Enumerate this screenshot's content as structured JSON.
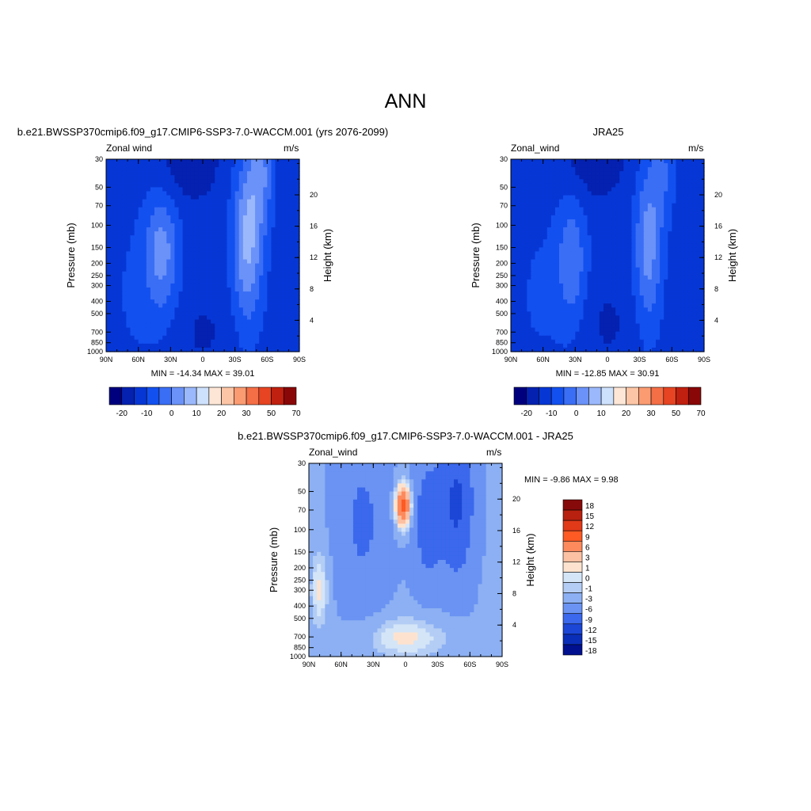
{
  "main_title": "ANN",
  "colorbar_ticks_top": [
    "-20",
    "-10",
    "0",
    "10",
    "20",
    "30",
    "50",
    "70"
  ],
  "colorbar_ticks_diff": [
    "18",
    "15",
    "12",
    "9",
    "6",
    "3",
    "1",
    "0",
    "-1",
    "-3",
    "-6",
    "-9",
    "-12",
    "-15",
    "-18"
  ],
  "colors_top": [
    "#00007f",
    "#0421b0",
    "#0637d5",
    "#1350f0",
    "#3a6ef5",
    "#6a92f8",
    "#9ab8fb",
    "#cde0fc",
    "#fde6d6",
    "#fcc5a6",
    "#fa9b72",
    "#f46e46",
    "#e64422",
    "#c0200f",
    "#8a0707"
  ],
  "colors_diff": [
    "#870a0a",
    "#b8210f",
    "#e13a19",
    "#fd5a24",
    "#fd8a5d",
    "#fcc0a2",
    "#fde3cf",
    "#d4e5f8",
    "#b4cdf5",
    "#8cb0f3",
    "#6a93f3",
    "#3b68ec",
    "#1b46d6",
    "#0b2eb8",
    "#00108e"
  ],
  "chart_data": [
    {
      "type": "heatmap",
      "title": "b.e21.BWSSP370cmip6.f09_g17.CMIP6-SSP3-7.0-WACCM.001 (yrs 2076-2099)",
      "field": "Zonal wind",
      "units": "m/s",
      "xlabel": "",
      "ylabel": "Pressure (mb)",
      "ylabel_right": "Height (km)",
      "x_ticks": [
        "90N",
        "60N",
        "30N",
        "0",
        "30S",
        "60S",
        "90S"
      ],
      "y_ticks": [
        "30",
        "50",
        "70",
        "100",
        "150",
        "200",
        "250",
        "300",
        "400",
        "500",
        "700",
        "850",
        "1000"
      ],
      "y_ticks_right": [
        "20",
        "16",
        "12",
        "8",
        "4"
      ],
      "ylim": [
        1000,
        30
      ],
      "min_max_text": "MIN = -14.34  MAX =  39.01",
      "min": -14.34,
      "max": 39.01,
      "levels": [
        -20,
        -10,
        0,
        10,
        20,
        30,
        50,
        70
      ]
    },
    {
      "type": "heatmap",
      "title": "JRA25",
      "field": "Zonal_wind",
      "units": "m/s",
      "xlabel": "",
      "ylabel": "Pressure (mb)",
      "ylabel_right": "Height (km)",
      "x_ticks": [
        "90N",
        "60N",
        "30N",
        "0",
        "30S",
        "60S",
        "90S"
      ],
      "y_ticks": [
        "30",
        "50",
        "70",
        "100",
        "150",
        "200",
        "250",
        "300",
        "400",
        "500",
        "700",
        "850",
        "1000"
      ],
      "y_ticks_right": [
        "20",
        "16",
        "12",
        "8",
        "4"
      ],
      "ylim": [
        1000,
        30
      ],
      "min_max_text": "MIN = -12.85  MAX =  30.91",
      "min": -12.85,
      "max": 30.91,
      "levels": [
        -20,
        -10,
        0,
        10,
        20,
        30,
        50,
        70
      ]
    },
    {
      "type": "heatmap",
      "title": "b.e21.BWSSP370cmip6.f09_g17.CMIP6-SSP3-7.0-WACCM.001 - JRA25",
      "field": "Zonal_wind",
      "units": "m/s",
      "xlabel": "",
      "ylabel": "Pressure (mb)",
      "ylabel_right": "Height (km)",
      "x_ticks": [
        "90N",
        "60N",
        "30N",
        "0",
        "30S",
        "60S",
        "90S"
      ],
      "y_ticks": [
        "30",
        "50",
        "70",
        "100",
        "150",
        "200",
        "250",
        "300",
        "400",
        "500",
        "700",
        "850",
        "1000"
      ],
      "y_ticks_right": [
        "20",
        "16",
        "12",
        "8",
        "4"
      ],
      "ylim": [
        1000,
        30
      ],
      "min_max_text": "MIN =  -9.86  MAX =   9.98",
      "min": -9.86,
      "max": 9.98,
      "levels": [
        -18,
        -15,
        -12,
        -9,
        -6,
        -3,
        -1,
        0,
        1,
        3,
        6,
        9,
        12,
        15,
        18
      ]
    }
  ]
}
